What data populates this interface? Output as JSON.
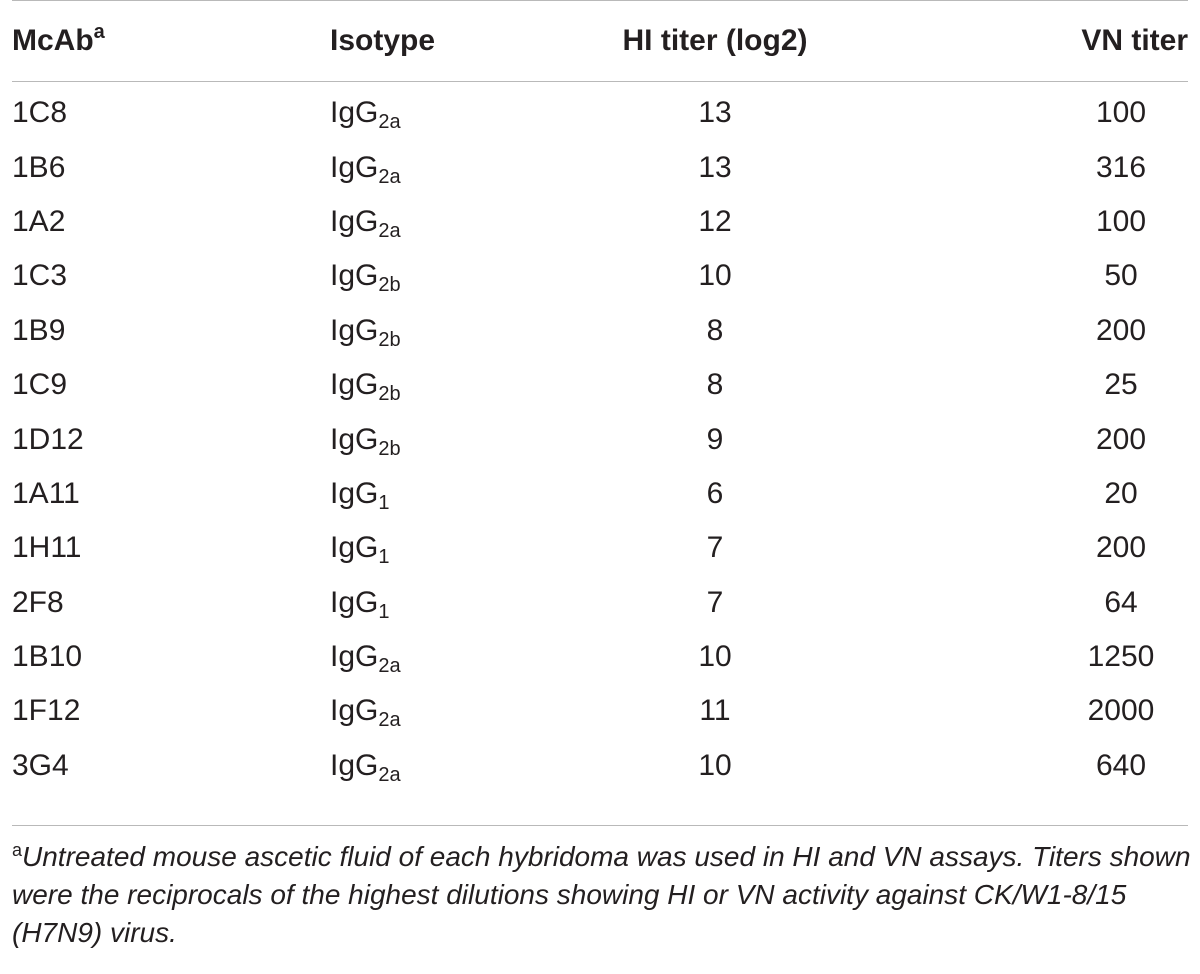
{
  "table": {
    "headers": {
      "mcab": "McAb",
      "mcab_marker": "a",
      "isotype": "Isotype",
      "hi": "HI titer (log2)",
      "vn": "VN titer"
    },
    "rows": [
      {
        "mcab": "1C8",
        "iso_base": "IgG",
        "iso_sub": "2a",
        "hi": "13",
        "vn": "100"
      },
      {
        "mcab": "1B6",
        "iso_base": "IgG",
        "iso_sub": "2a",
        "hi": "13",
        "vn": "316"
      },
      {
        "mcab": "1A2",
        "iso_base": "IgG",
        "iso_sub": "2a",
        "hi": "12",
        "vn": "100"
      },
      {
        "mcab": "1C3",
        "iso_base": "IgG",
        "iso_sub": "2b",
        "hi": "10",
        "vn": "50"
      },
      {
        "mcab": "1B9",
        "iso_base": "IgG",
        "iso_sub": "2b",
        "hi": "8",
        "vn": "200"
      },
      {
        "mcab": "1C9",
        "iso_base": "IgG",
        "iso_sub": "2b",
        "hi": "8",
        "vn": "25"
      },
      {
        "mcab": "1D12",
        "iso_base": "IgG",
        "iso_sub": "2b",
        "hi": "9",
        "vn": "200"
      },
      {
        "mcab": "1A11",
        "iso_base": "IgG",
        "iso_sub": "1",
        "hi": "6",
        "vn": "20"
      },
      {
        "mcab": "1H11",
        "iso_base": "IgG",
        "iso_sub": "1",
        "hi": "7",
        "vn": "200"
      },
      {
        "mcab": "2F8",
        "iso_base": "IgG",
        "iso_sub": "1",
        "hi": "7",
        "vn": "64"
      },
      {
        "mcab": "1B10",
        "iso_base": "IgG",
        "iso_sub": "2a",
        "hi": "10",
        "vn": "1250"
      },
      {
        "mcab": "1F12",
        "iso_base": "IgG",
        "iso_sub": "2a",
        "hi": "11",
        "vn": "2000"
      },
      {
        "mcab": "3G4",
        "iso_base": "IgG",
        "iso_sub": "2a",
        "hi": "10",
        "vn": "640"
      }
    ]
  },
  "footnote": {
    "marker": "a",
    "text": "Untreated mouse ascetic fluid of each hybridoma was used in HI and VN assays. Titers shown were the reciprocals of the highest dilutions showing HI or VN activity against CK/W1-8/15 (H7N9) virus."
  }
}
